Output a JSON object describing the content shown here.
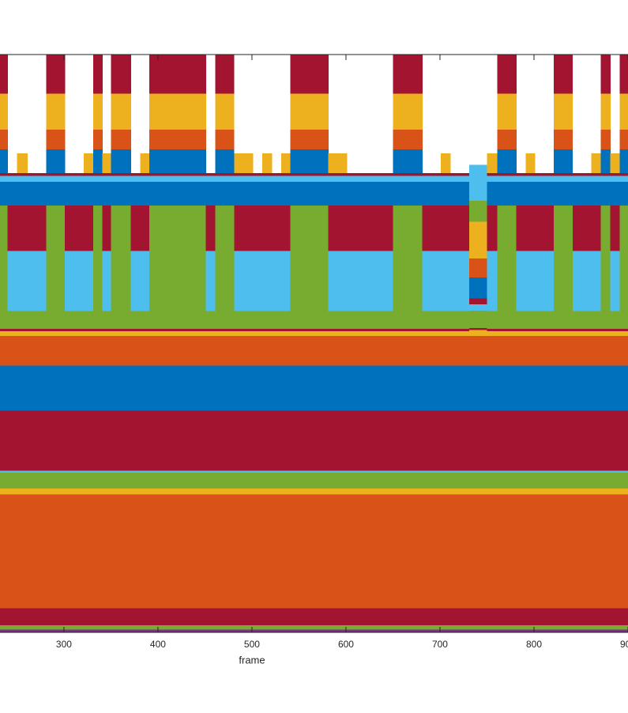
{
  "chart_data": {
    "type": "stacked-step",
    "xlabel": "frame",
    "xlim": [
      232,
      900
    ],
    "xticks": [
      300,
      400,
      500,
      600,
      700,
      800,
      900
    ],
    "ylim": [
      0,
      100
    ],
    "series": [
      {
        "color": "#7E2F8E",
        "bins": [
          232,
          900
        ],
        "values": [
          0.5
        ]
      },
      {
        "color": "#77AC30",
        "bins": [
          232,
          900
        ],
        "values": [
          0.7
        ]
      },
      {
        "color": "#A2142F",
        "bins": [
          232,
          900
        ],
        "values": [
          3.0
        ]
      },
      {
        "color": "#D95319",
        "bins": [
          232,
          900
        ],
        "values": [
          19.7
        ]
      },
      {
        "color": "#EDB120",
        "bins": [
          232,
          900
        ],
        "values": [
          1.0
        ]
      },
      {
        "color": "#77AC30",
        "bins": [
          232,
          900
        ],
        "values": [
          2.7
        ]
      },
      {
        "color": "#4DBEEE",
        "bins": [
          232,
          900
        ],
        "values": [
          0.4
        ]
      },
      {
        "color": "#A2142F",
        "bins": [
          232,
          900
        ],
        "values": [
          10.4
        ]
      },
      {
        "color": "#0072BD",
        "bins": [
          232,
          900
        ],
        "values": [
          7.8
        ]
      },
      {
        "color": "#D95319",
        "bins": [
          232,
          900
        ],
        "values": [
          5.1
        ]
      },
      {
        "color": "#EDB120",
        "bins": [
          232,
          731,
          750,
          900
        ],
        "values": [
          0.8,
          1.0,
          0.8
        ]
      },
      {
        "color": "#A2142F",
        "bins": [
          232,
          900
        ],
        "values": [
          0.4
        ]
      },
      {
        "color": "#77AC30",
        "bins": [
          232,
          240,
          281,
          301,
          331,
          341,
          350,
          371,
          391,
          451,
          461,
          481,
          541,
          581,
          650,
          681,
          731,
          750,
          761,
          781,
          821,
          841,
          871,
          881,
          891,
          900
        ],
        "values": [
          21.4,
          3.1,
          21.4,
          3.1,
          21.4,
          3.1,
          21.4,
          3.1,
          21.4,
          3.1,
          21.4,
          3.1,
          21.4,
          3.1,
          21.4,
          3.1,
          3.0,
          3.1,
          21.4,
          3.1,
          21.4,
          3.1,
          21.4,
          3.1,
          21.4
        ]
      },
      {
        "color": "#4DBEEE",
        "bins": [
          232,
          240,
          281,
          301,
          331,
          341,
          350,
          371,
          391,
          451,
          461,
          481,
          541,
          581,
          650,
          681,
          731,
          750,
          761,
          781,
          821,
          841,
          871,
          881,
          891,
          900
        ],
        "values": [
          0,
          10.4,
          0,
          10.4,
          0,
          10.4,
          0,
          10.4,
          0,
          10.4,
          0,
          10.4,
          0,
          10.4,
          0,
          10.4,
          1.1,
          10.4,
          0,
          10.4,
          0,
          10.4,
          0,
          10.4,
          0
        ]
      },
      {
        "color": "#A2142F",
        "bins": [
          232,
          240,
          281,
          301,
          331,
          341,
          350,
          371,
          391,
          451,
          461,
          481,
          541,
          581,
          650,
          681,
          731,
          750,
          761,
          781,
          821,
          841,
          871,
          881,
          891,
          900
        ],
        "values": [
          0,
          7.9,
          0,
          7.9,
          0,
          7.9,
          0,
          7.9,
          0,
          7.9,
          0,
          7.9,
          0,
          7.9,
          0,
          7.9,
          1.0,
          7.9,
          0,
          7.9,
          0,
          7.9,
          0,
          7.9,
          0
        ]
      },
      {
        "color": "#0072BD",
        "bins": [
          232,
          731,
          750,
          900
        ],
        "values": [
          4.1,
          3.6,
          4.1
        ]
      },
      {
        "color": "#4DBEEE",
        "bins": [
          232,
          731,
          750,
          900
        ],
        "values": [
          1.0,
          0,
          1.0
        ]
      },
      {
        "color": "#A2142F",
        "bins": [
          232,
          731,
          750,
          900
        ],
        "values": [
          0.5,
          0,
          0.5
        ]
      },
      {
        "color": "#0072BD",
        "bins": [
          232,
          240,
          281,
          301,
          331,
          341,
          350,
          371,
          391,
          451,
          461,
          481,
          541,
          581,
          650,
          681,
          731,
          750,
          761,
          781,
          821,
          841,
          871,
          881,
          891,
          900
        ],
        "values": [
          4.1,
          0,
          4.1,
          0,
          4.1,
          0,
          4.1,
          0,
          4.1,
          0,
          4.1,
          0,
          4.1,
          0,
          4.1,
          0,
          0,
          0,
          4.1,
          0,
          4.1,
          0,
          4.1,
          0,
          4.1
        ]
      },
      {
        "color": "#D95319",
        "bins": [
          232,
          240,
          281,
          301,
          331,
          341,
          350,
          371,
          391,
          451,
          461,
          481,
          541,
          581,
          650,
          681,
          731,
          750,
          761,
          781,
          821,
          841,
          871,
          881,
          891,
          900
        ],
        "values": [
          3.4,
          0,
          3.4,
          0,
          3.4,
          0,
          3.4,
          0,
          3.4,
          0,
          3.4,
          0,
          3.4,
          0,
          3.4,
          0,
          3.3,
          0,
          3.4,
          0,
          3.4,
          0,
          3.4,
          0,
          3.4
        ]
      },
      {
        "color": "#EDB120",
        "bins": [
          232,
          240,
          250,
          261,
          281,
          301,
          321,
          331,
          341,
          350,
          371,
          381,
          391,
          451,
          461,
          481,
          501,
          511,
          521,
          531,
          541,
          581,
          601,
          650,
          681,
          701,
          711,
          731,
          750,
          761,
          781,
          791,
          801,
          821,
          841,
          861,
          871,
          881,
          891,
          900
        ],
        "values": [
          6.2,
          0,
          3.4,
          0,
          6.2,
          0,
          3.4,
          6.2,
          3.4,
          6.2,
          0,
          3.4,
          6.2,
          0,
          6.2,
          3.4,
          0,
          3.4,
          0,
          3.4,
          6.2,
          3.4,
          0,
          6.2,
          0,
          3.4,
          0,
          6.4,
          3.4,
          6.2,
          0,
          3.4,
          0,
          6.2,
          0,
          3.4,
          6.2,
          3.4,
          6.2
        ]
      },
      {
        "color": "#A2142F",
        "bins": [
          232,
          240,
          281,
          301,
          331,
          341,
          350,
          371,
          391,
          451,
          461,
          481,
          541,
          581,
          650,
          681,
          731,
          750,
          761,
          781,
          821,
          841,
          871,
          881,
          891,
          900
        ],
        "values": [
          6.7,
          0,
          6.7,
          0,
          6.7,
          0,
          6.7,
          0,
          6.7,
          0,
          6.7,
          0,
          6.7,
          0,
          6.7,
          0,
          0,
          0,
          6.7,
          0,
          6.7,
          0,
          6.7,
          0,
          6.7
        ]
      },
      {
        "color": "#77AC30",
        "bins": [
          232,
          731,
          750,
          900
        ],
        "values": [
          0,
          3.6,
          0
        ]
      },
      {
        "color": "#4DBEEE",
        "bins": [
          232,
          731,
          750,
          900
        ],
        "values": [
          0,
          6.2,
          0
        ]
      }
    ]
  }
}
